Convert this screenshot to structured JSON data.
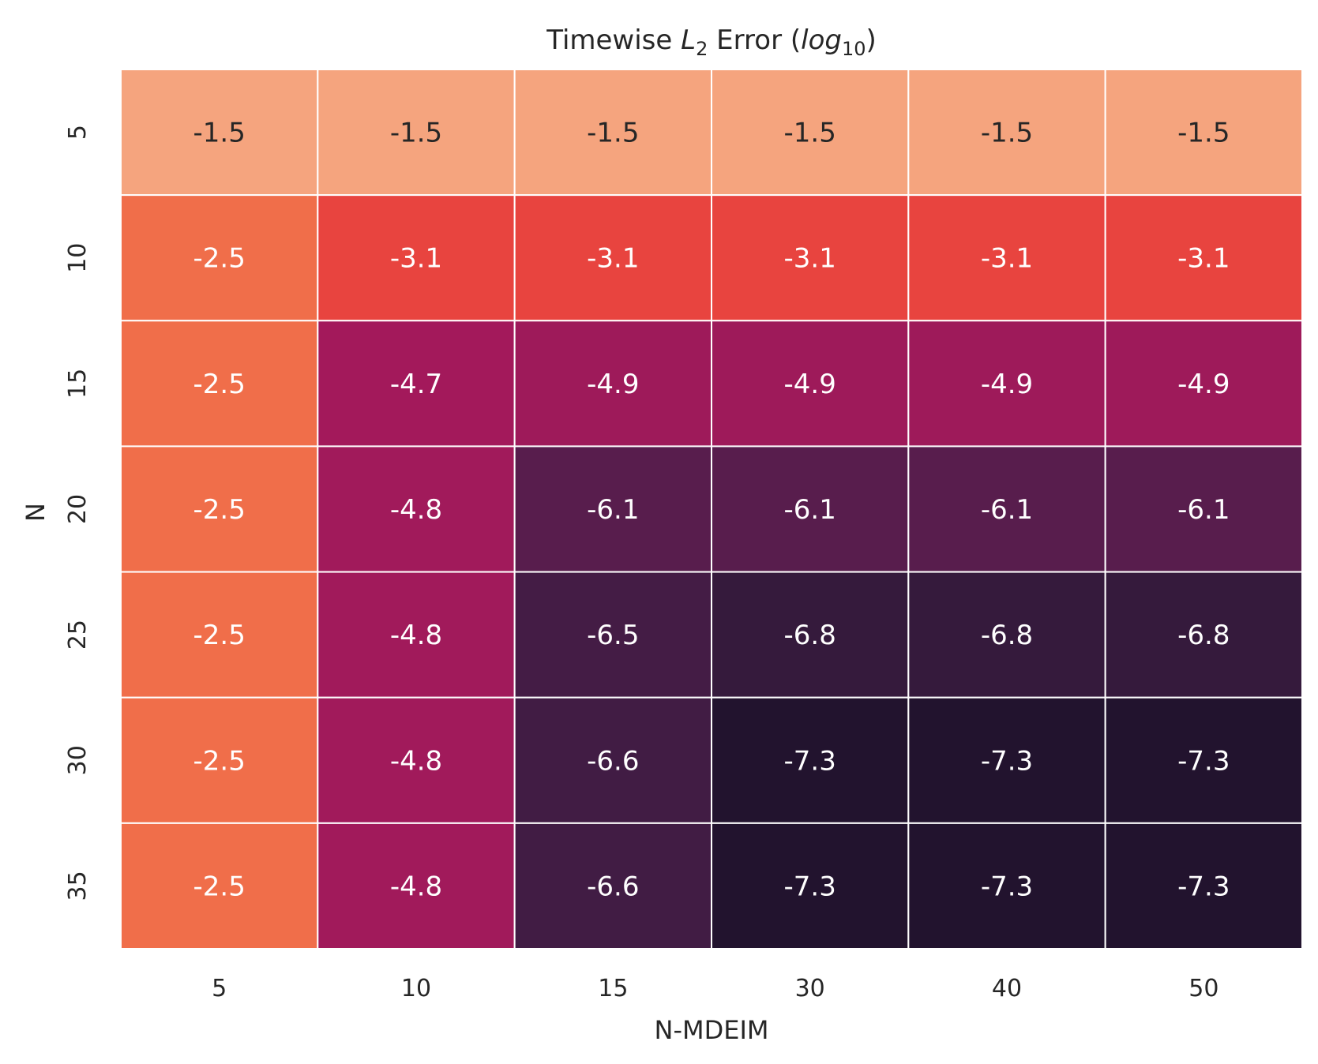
{
  "chart_data": {
    "type": "heatmap",
    "title": {
      "prefix": "Timewise ",
      "symbol": "L",
      "symbol_sub": "2",
      "middle": " Error (",
      "log": "log",
      "log_sub": "10",
      "suffix": ")"
    },
    "xlabel": "N-MDEIM",
    "ylabel": "N",
    "x_categories": [
      "5",
      "10",
      "15",
      "30",
      "40",
      "50"
    ],
    "y_categories": [
      "5",
      "10",
      "15",
      "20",
      "25",
      "30",
      "35"
    ],
    "values": [
      [
        -1.5,
        -1.5,
        -1.5,
        -1.5,
        -1.5,
        -1.5
      ],
      [
        -2.5,
        -3.1,
        -3.1,
        -3.1,
        -3.1,
        -3.1
      ],
      [
        -2.5,
        -4.7,
        -4.9,
        -4.9,
        -4.9,
        -4.9
      ],
      [
        -2.5,
        -4.8,
        -6.1,
        -6.1,
        -6.1,
        -6.1
      ],
      [
        -2.5,
        -4.8,
        -6.5,
        -6.8,
        -6.8,
        -6.8
      ],
      [
        -2.5,
        -4.8,
        -6.6,
        -7.3,
        -7.3,
        -7.3
      ],
      [
        -2.5,
        -4.8,
        -6.6,
        -7.3,
        -7.3,
        -7.3
      ]
    ],
    "colormap": "rocket",
    "colorbar": false,
    "grid_line_color": "#ffffff",
    "colors": {
      "-1.5": "#f5a47e",
      "-2.5": "#f06e4a",
      "-3.1": "#e8443f",
      "-4.7": "#a3195b",
      "-4.8": "#a11a5b",
      "-4.9": "#9e1a5a",
      "-6.1": "#581d4d",
      "-6.5": "#441c45",
      "-6.6": "#411c44",
      "-6.8": "#351a3c",
      "-7.3": "#22132e"
    }
  }
}
